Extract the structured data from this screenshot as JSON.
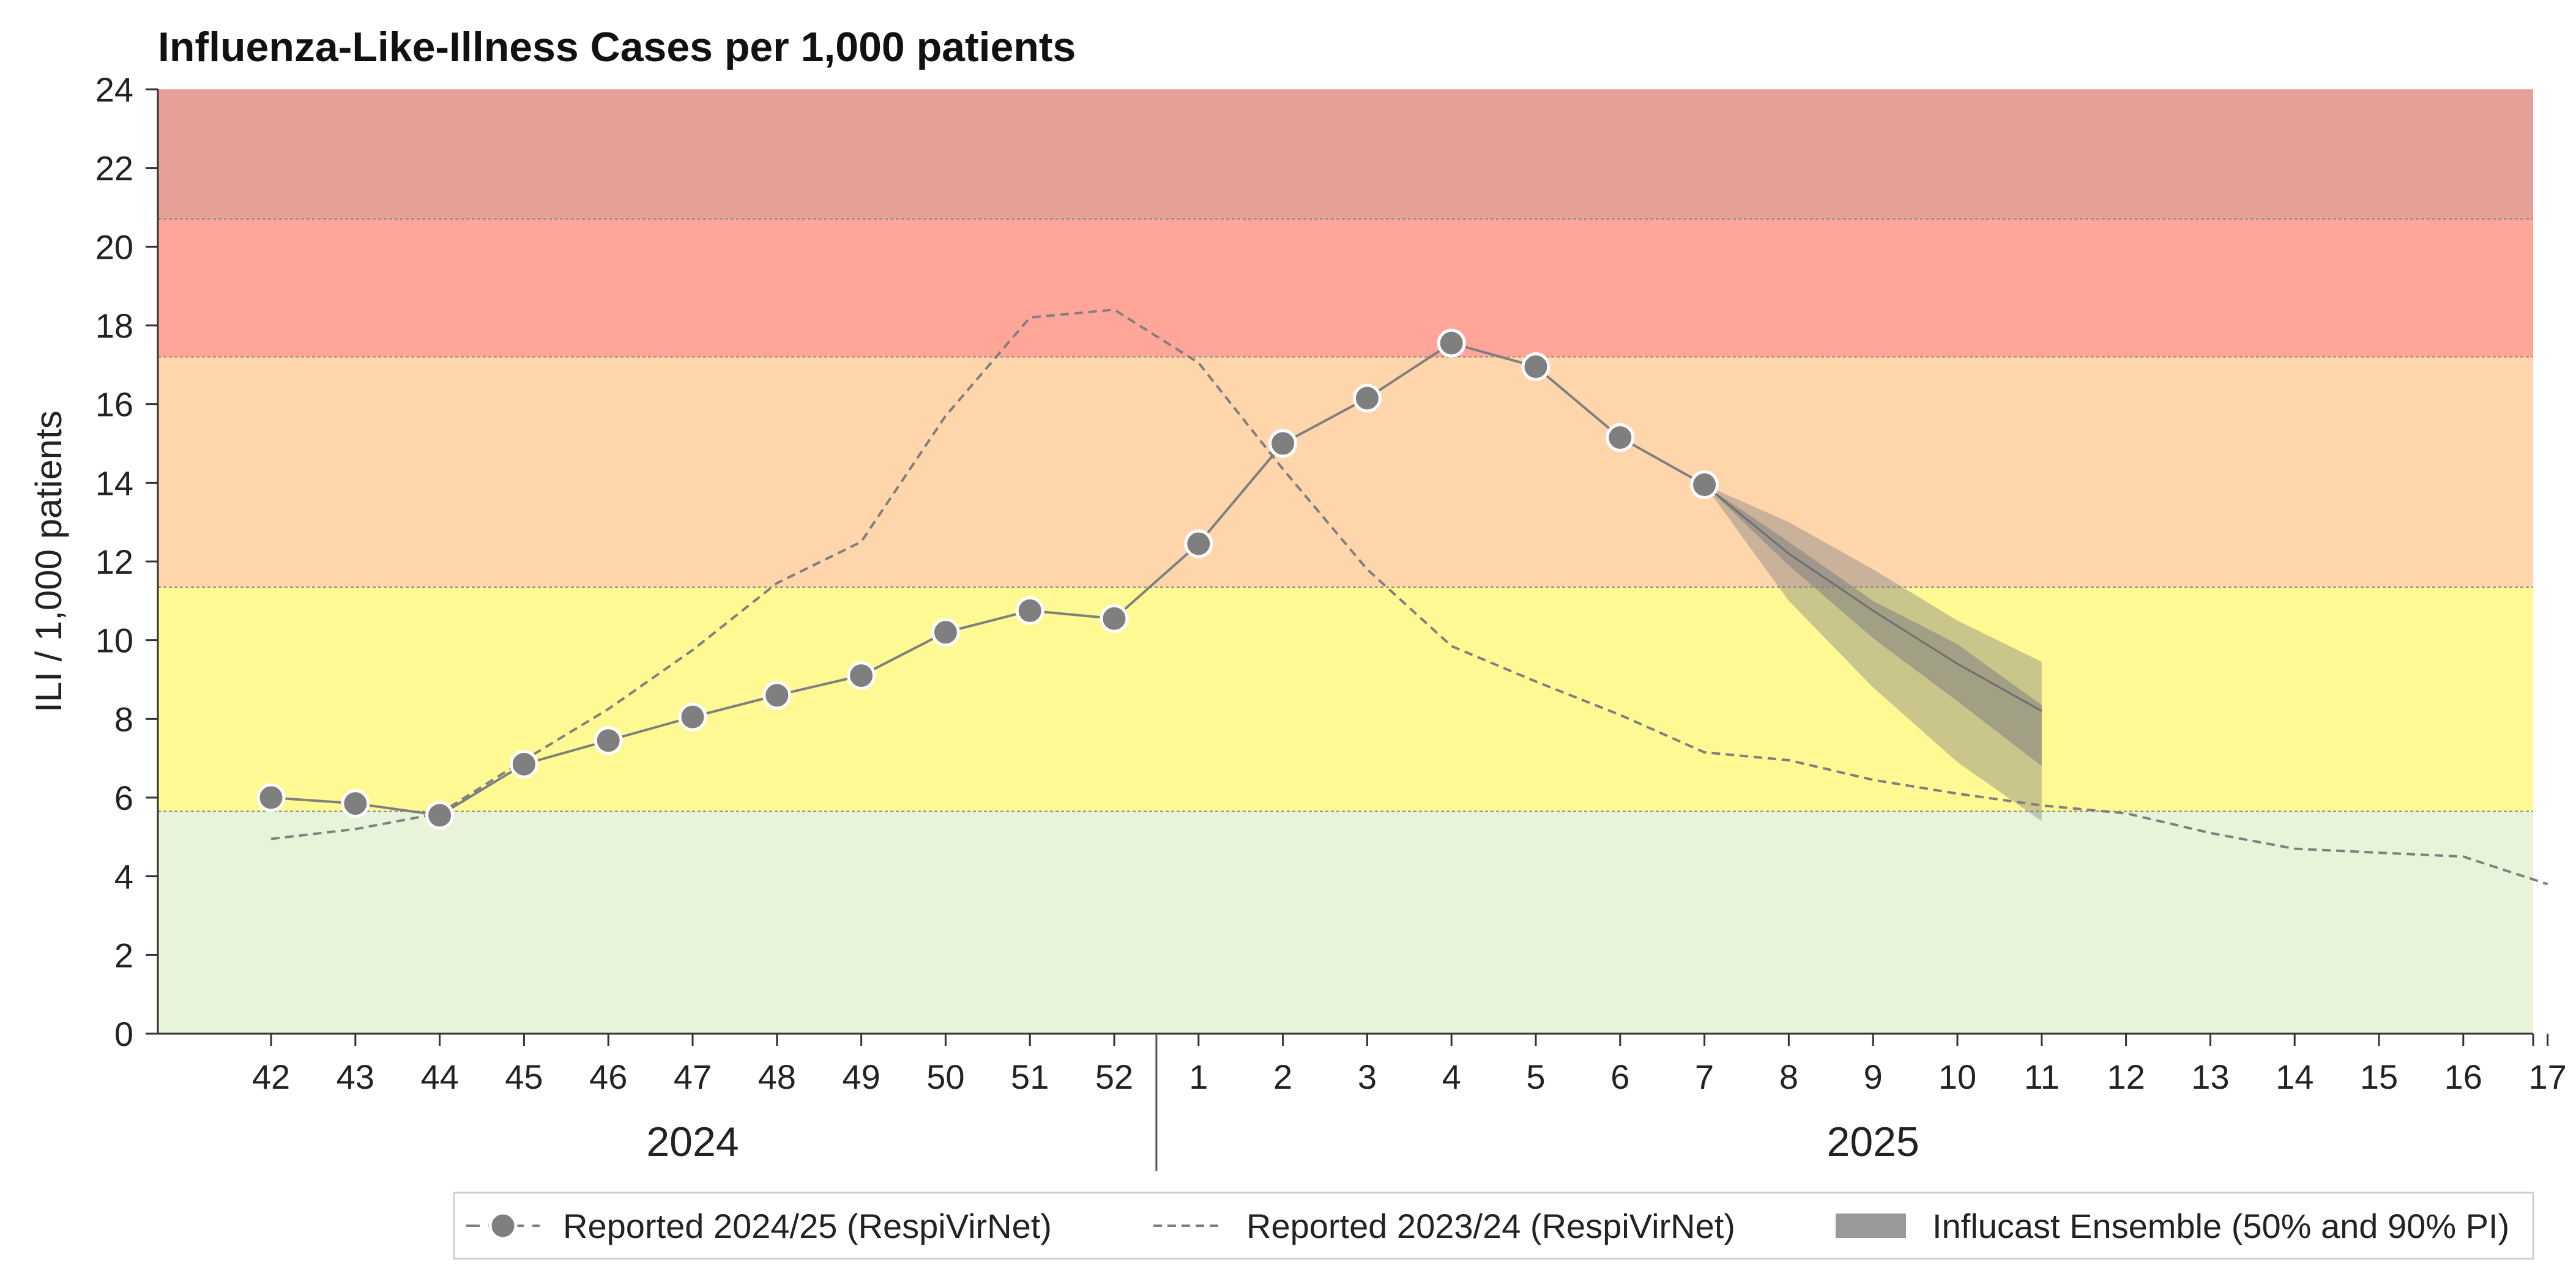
{
  "chart_data": {
    "type": "line",
    "title": "Influenza-Like-Illness Cases per 1,000 patients",
    "ylabel": "ILI / 1,000 patients",
    "xlabel": "",
    "ylim": [
      0,
      24
    ],
    "yticks": [
      "0",
      "2",
      "4",
      "6",
      "8",
      "10",
      "12",
      "14",
      "16",
      "18",
      "20",
      "22",
      "24"
    ],
    "x_ticks": [
      "42",
      "43",
      "44",
      "45",
      "46",
      "47",
      "48",
      "49",
      "50",
      "51",
      "52",
      "1",
      "2",
      "3",
      "4",
      "5",
      "6",
      "7",
      "8",
      "9",
      "10",
      "11",
      "12",
      "13",
      "14",
      "15",
      "16",
      "17"
    ],
    "year_labels": [
      {
        "label": "2024",
        "from": "42",
        "to": "52"
      },
      {
        "label": "2025",
        "from": "1",
        "to": "17"
      }
    ],
    "grid": false,
    "legend_position": "bottom-right",
    "intensity_bands": [
      {
        "from": 0,
        "to": 5.65,
        "color": "#e8f4d9"
      },
      {
        "from": 5.65,
        "to": 11.35,
        "color": "#fff993"
      },
      {
        "from": 11.35,
        "to": 17.2,
        "color": "#ffd5ab"
      },
      {
        "from": 17.2,
        "to": 20.7,
        "color": "#ffa699"
      },
      {
        "from": 20.7,
        "to": 24,
        "color": "#e6a098"
      }
    ],
    "series": [
      {
        "name": "Reported 2024/25 (RespiVirNet)",
        "style": "solid-markers",
        "color": "#7f7f7f",
        "x": [
          "42",
          "43",
          "44",
          "45",
          "46",
          "47",
          "48",
          "49",
          "50",
          "51",
          "52",
          "1",
          "2",
          "3",
          "4",
          "5",
          "6",
          "7"
        ],
        "values": [
          6.0,
          5.85,
          5.55,
          6.85,
          7.45,
          8.05,
          8.6,
          9.1,
          10.2,
          10.75,
          10.55,
          12.45,
          15.0,
          16.15,
          17.55,
          16.95,
          15.15,
          13.95
        ]
      },
      {
        "name": "Reported 2023/24 (RespiVirNet)",
        "style": "dashed",
        "color": "#7f7f7f",
        "x": [
          "42",
          "43",
          "44",
          "45",
          "46",
          "47",
          "48",
          "49",
          "50",
          "51",
          "52",
          "1",
          "2",
          "3",
          "4",
          "5",
          "6",
          "7",
          "8",
          "9",
          "10",
          "11",
          "12",
          "13",
          "14",
          "15",
          "16",
          "17"
        ],
        "values": [
          4.95,
          5.2,
          5.6,
          6.95,
          8.25,
          9.75,
          11.45,
          12.5,
          15.7,
          18.2,
          18.4,
          17.05,
          14.35,
          11.8,
          9.85,
          8.95,
          8.1,
          7.15,
          6.95,
          6.45,
          6.1,
          5.8,
          5.6,
          5.1,
          4.7,
          4.6,
          4.5,
          3.8
        ]
      }
    ],
    "forecast": {
      "name": "Influcast Ensemble (50% and 90% PI)",
      "color": "#808080",
      "x": [
        "7",
        "8",
        "9",
        "10",
        "11"
      ],
      "median": [
        13.95,
        12.2,
        10.75,
        9.4,
        8.2
      ],
      "pi50_low": [
        13.95,
        11.9,
        10.05,
        8.45,
        6.8
      ],
      "pi50_high": [
        13.95,
        12.5,
        11.0,
        9.9,
        8.35
      ],
      "pi90_low": [
        13.95,
        11.0,
        8.8,
        6.9,
        5.4
      ],
      "pi90_high": [
        13.95,
        13.0,
        11.8,
        10.5,
        9.45
      ]
    }
  }
}
